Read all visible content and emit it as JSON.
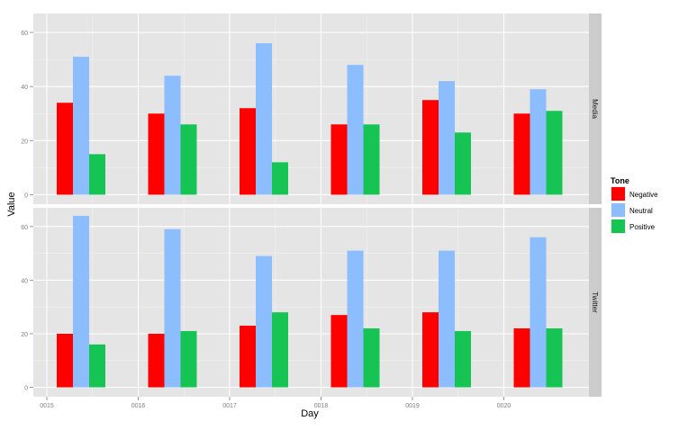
{
  "chart_data": {
    "type": "bar",
    "xlabel": "Day",
    "ylabel": "Value",
    "x_ticks": [
      "0015",
      "0016",
      "0017",
      "0018",
      "0019",
      "0020"
    ],
    "y_ticks": [
      0,
      20,
      40,
      60
    ],
    "legend": {
      "title": "Tone",
      "position": "right",
      "entries": [
        "Negative",
        "Neutral",
        "Positive"
      ]
    },
    "colors": {
      "Negative": "#ff0000",
      "Neutral": "#8cbdff",
      "Positive": "#16c454"
    },
    "grid": true,
    "facets": [
      {
        "label": "Media",
        "ylim": [
          -3.5,
          67
        ],
        "categories": [
          "0015",
          "0016",
          "0017",
          "0018",
          "0019",
          "0020"
        ],
        "series": [
          {
            "name": "Negative",
            "values": [
              34,
              30,
              32,
              26,
              35,
              30
            ]
          },
          {
            "name": "Neutral",
            "values": [
              51,
              44,
              56,
              48,
              42,
              39
            ]
          },
          {
            "name": "Positive",
            "values": [
              15,
              26,
              12,
              26,
              23,
              31
            ]
          }
        ]
      },
      {
        "label": "Twitter",
        "ylim": [
          -3.5,
          67
        ],
        "categories": [
          "0015",
          "0016",
          "0017",
          "0018",
          "0019",
          "0020"
        ],
        "series": [
          {
            "name": "Negative",
            "values": [
              20,
              20,
              23,
              27,
              28,
              22
            ]
          },
          {
            "name": "Neutral",
            "values": [
              64,
              59,
              49,
              51,
              51,
              56
            ]
          },
          {
            "name": "Positive",
            "values": [
              16,
              21,
              28,
              22,
              21,
              22
            ]
          }
        ]
      }
    ]
  }
}
